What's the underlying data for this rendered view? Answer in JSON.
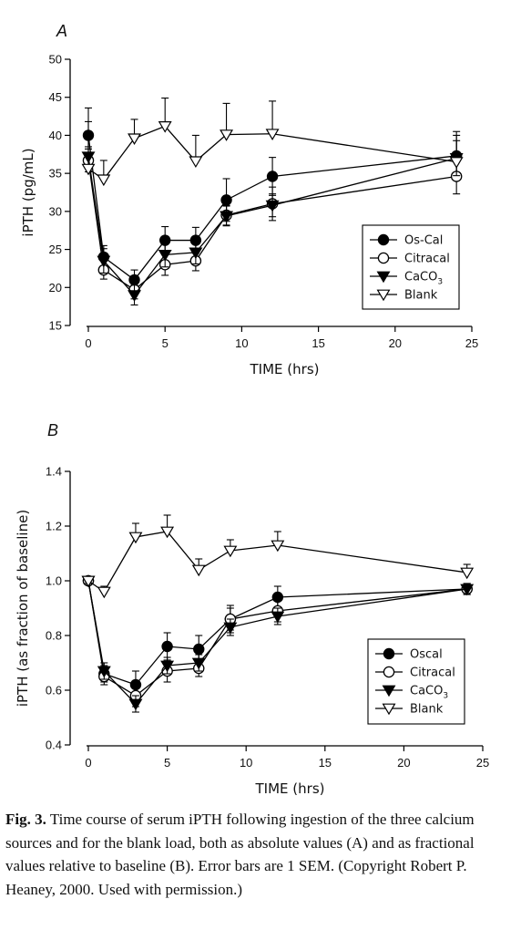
{
  "chart_data": [
    {
      "type": "line",
      "panel_label": "A",
      "xlabel": "TIME (hrs)",
      "ylabel": "iPTH (pg/mL)",
      "xlim": [
        0,
        25
      ],
      "ylim": [
        15,
        50
      ],
      "xticks": [
        0,
        5,
        10,
        15,
        20,
        25
      ],
      "yticks": [
        15,
        20,
        25,
        30,
        35,
        40,
        45,
        50
      ],
      "legend_position": "bottom-right",
      "x": [
        0,
        1,
        3,
        5,
        7,
        9,
        12,
        24
      ],
      "series": [
        {
          "name": "Os-Cal",
          "marker": "filled-circle",
          "values": [
            40.0,
            24.0,
            21.0,
            26.2,
            26.2,
            31.5,
            34.6,
            37.3
          ],
          "errors": [
            1.8,
            1.5,
            1.3,
            1.8,
            1.7,
            2.8,
            2.5,
            3.2
          ]
        },
        {
          "name": "Citracal",
          "marker": "open-circle",
          "values": [
            36.7,
            22.3,
            19.7,
            23.0,
            23.5,
            29.5,
            31.0,
            34.6
          ],
          "errors": [
            1.5,
            1.2,
            1.2,
            1.4,
            1.3,
            1.3,
            2.2,
            2.3
          ]
        },
        {
          "name": "CaCO",
          "name_subscript": "3",
          "marker": "filled-triangle-down",
          "values": [
            37.2,
            23.5,
            19.0,
            24.3,
            24.6,
            29.4,
            30.8,
            37.0
          ],
          "errors": [
            1.3,
            1.6,
            1.3,
            1.6,
            1.5,
            1.3,
            1.5,
            2.3
          ]
        },
        {
          "name": "Blank",
          "marker": "open-triangle-down",
          "values": [
            35.6,
            34.2,
            39.6,
            41.2,
            36.6,
            40.1,
            40.2,
            36.5
          ],
          "errors": [
            8.0,
            2.5,
            2.5,
            3.7,
            3.4,
            4.1,
            4.3,
            3.5
          ]
        }
      ]
    },
    {
      "type": "line",
      "panel_label": "B",
      "xlabel": "TIME (hrs)",
      "ylabel": "iPTH (as fraction of baseline)",
      "xlim": [
        0,
        25
      ],
      "ylim": [
        0.4,
        1.4
      ],
      "xticks": [
        0,
        5,
        10,
        15,
        20,
        25
      ],
      "yticks": [
        "0.4",
        "0.6",
        "0.8",
        "1.0",
        "1.2",
        "1.4"
      ],
      "legend_position": "bottom-right",
      "x": [
        0,
        1,
        3,
        5,
        7,
        9,
        12,
        24
      ],
      "series": [
        {
          "name": "Oscal",
          "marker": "filled-circle",
          "values": [
            1.0,
            0.66,
            0.62,
            0.76,
            0.75,
            0.86,
            0.94,
            0.97
          ],
          "errors": [
            0.01,
            0.03,
            0.05,
            0.05,
            0.05,
            0.05,
            0.04,
            0.02
          ]
        },
        {
          "name": "Citracal",
          "marker": "open-circle",
          "values": [
            1.0,
            0.65,
            0.58,
            0.67,
            0.68,
            0.86,
            0.89,
            0.97
          ],
          "errors": [
            0.01,
            0.03,
            0.04,
            0.04,
            0.03,
            0.04,
            0.04,
            0.02
          ]
        },
        {
          "name": "CaCO",
          "name_subscript": "3",
          "marker": "filled-triangle-down",
          "values": [
            1.0,
            0.67,
            0.55,
            0.69,
            0.7,
            0.83,
            0.87,
            0.97
          ],
          "errors": [
            0.01,
            0.03,
            0.03,
            0.03,
            0.03,
            0.03,
            0.03,
            0.02
          ]
        },
        {
          "name": "Blank",
          "marker": "open-triangle-down",
          "values": [
            1.0,
            0.96,
            1.16,
            1.18,
            1.04,
            1.11,
            1.13,
            1.03
          ],
          "errors": [
            0.01,
            0.02,
            0.05,
            0.06,
            0.04,
            0.04,
            0.05,
            0.03
          ]
        }
      ]
    }
  ],
  "caption": {
    "figure_label": "Fig. 3.",
    "text": "Time course of serum iPTH following ingestion of the three calcium sources and for the blank load, both as absolute values (A) and as fractional values relative to baseline (B). Error bars are 1 SEM. (Copyright Robert P. Heaney, 2000. Used with permission.)"
  }
}
